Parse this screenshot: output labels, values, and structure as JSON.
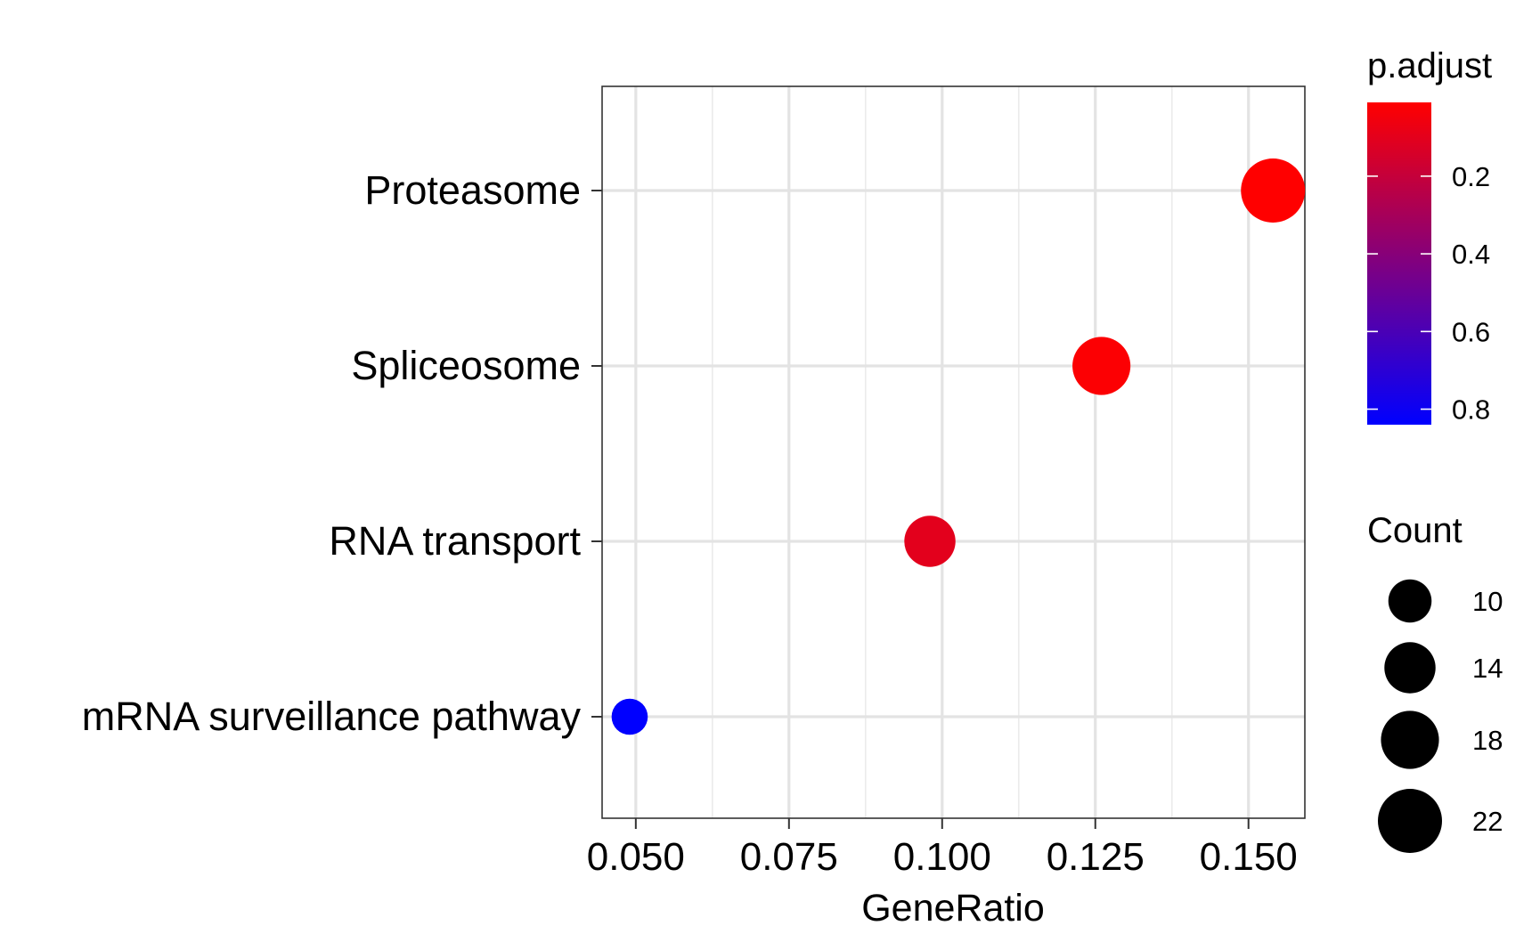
{
  "chart_data": {
    "type": "scatter",
    "xlabel": "GeneRatio",
    "ylabel": "",
    "title": "",
    "xlim": [
      0.0445,
      0.1592
    ],
    "xticks": [
      "0.050",
      "0.075",
      "0.100",
      "0.125",
      "0.150"
    ],
    "x_tick_values": [
      0.05,
      0.075,
      0.1,
      0.125,
      0.15
    ],
    "categories": [
      "Proteasome",
      "Spliceosome",
      "RNA transport",
      "mRNA surveillance pathway"
    ],
    "points": [
      {
        "category": "Proteasome",
        "x": 0.154,
        "count": 22,
        "p_adjust": 0.01
      },
      {
        "category": "Spliceosome",
        "x": 0.126,
        "count": 18,
        "p_adjust": 0.02
      },
      {
        "category": "RNA transport",
        "x": 0.098,
        "count": 14,
        "p_adjust": 0.1
      },
      {
        "category": "mRNA surveillance pathway",
        "x": 0.049,
        "count": 7,
        "p_adjust": 0.84
      }
    ],
    "grid": true,
    "color_legend": {
      "title": "p.adjust",
      "placement": "right",
      "low_color": "#ff0000",
      "high_color": "#0000ff",
      "range": [
        0.01,
        0.84
      ],
      "ticks": [
        "0.2",
        "0.4",
        "0.6",
        "0.8"
      ],
      "tick_values": [
        0.2,
        0.4,
        0.6,
        0.8
      ]
    },
    "size_legend": {
      "title": "Count",
      "placement": "right",
      "labels": [
        "10",
        "14",
        "18",
        "22"
      ],
      "values": [
        10,
        14,
        18,
        22
      ]
    }
  }
}
